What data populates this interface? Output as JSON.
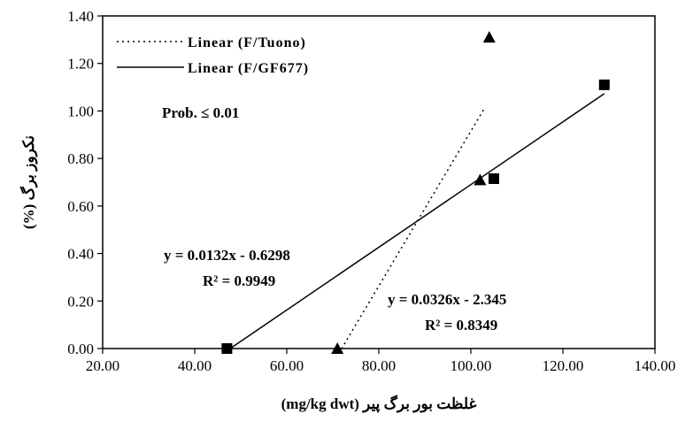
{
  "chart_data": {
    "type": "scatter",
    "xlabel": "غلظت بور برگ پیر  (mg/kg dwt)",
    "ylabel": "نکروز برگ  (%)",
    "xlim": [
      20,
      140
    ],
    "ylim": [
      0,
      1.4
    ],
    "x_ticks": [
      "20.00",
      "40.00",
      "60.00",
      "80.00",
      "100.00",
      "120.00",
      "140.00"
    ],
    "y_ticks": [
      "0.00",
      "0.20",
      "0.40",
      "0.60",
      "0.80",
      "1.00",
      "1.20",
      "1.40"
    ],
    "grid": false,
    "legend": "top-left",
    "series": [
      {
        "name": "F/Tuono",
        "marker": "triangle",
        "points": [
          [
            71,
            0.0
          ],
          [
            102,
            0.71
          ],
          [
            104,
            1.31
          ]
        ],
        "trendline": {
          "label": "Linear (F/Tuono)",
          "style": "dotted",
          "slope": 0.0326,
          "intercept": -2.345,
          "x_range": [
            71.9,
            103.0
          ],
          "equation": "y = 0.0326x - 2.345",
          "r2": "R² = 0.8349"
        }
      },
      {
        "name": "F/GF677",
        "marker": "square",
        "points": [
          [
            47,
            0.0
          ],
          [
            105,
            0.715
          ],
          [
            129,
            1.11
          ]
        ],
        "trendline": {
          "label": "Linear (F/GF677)",
          "style": "solid",
          "slope": 0.0132,
          "intercept": -0.6298,
          "x_range": [
            47.7,
            129.0
          ],
          "equation": "y = 0.0132x - 0.6298",
          "r2": "R² = 0.9949"
        }
      }
    ],
    "annotations": [
      "Prob. ≤ 0.01"
    ]
  }
}
